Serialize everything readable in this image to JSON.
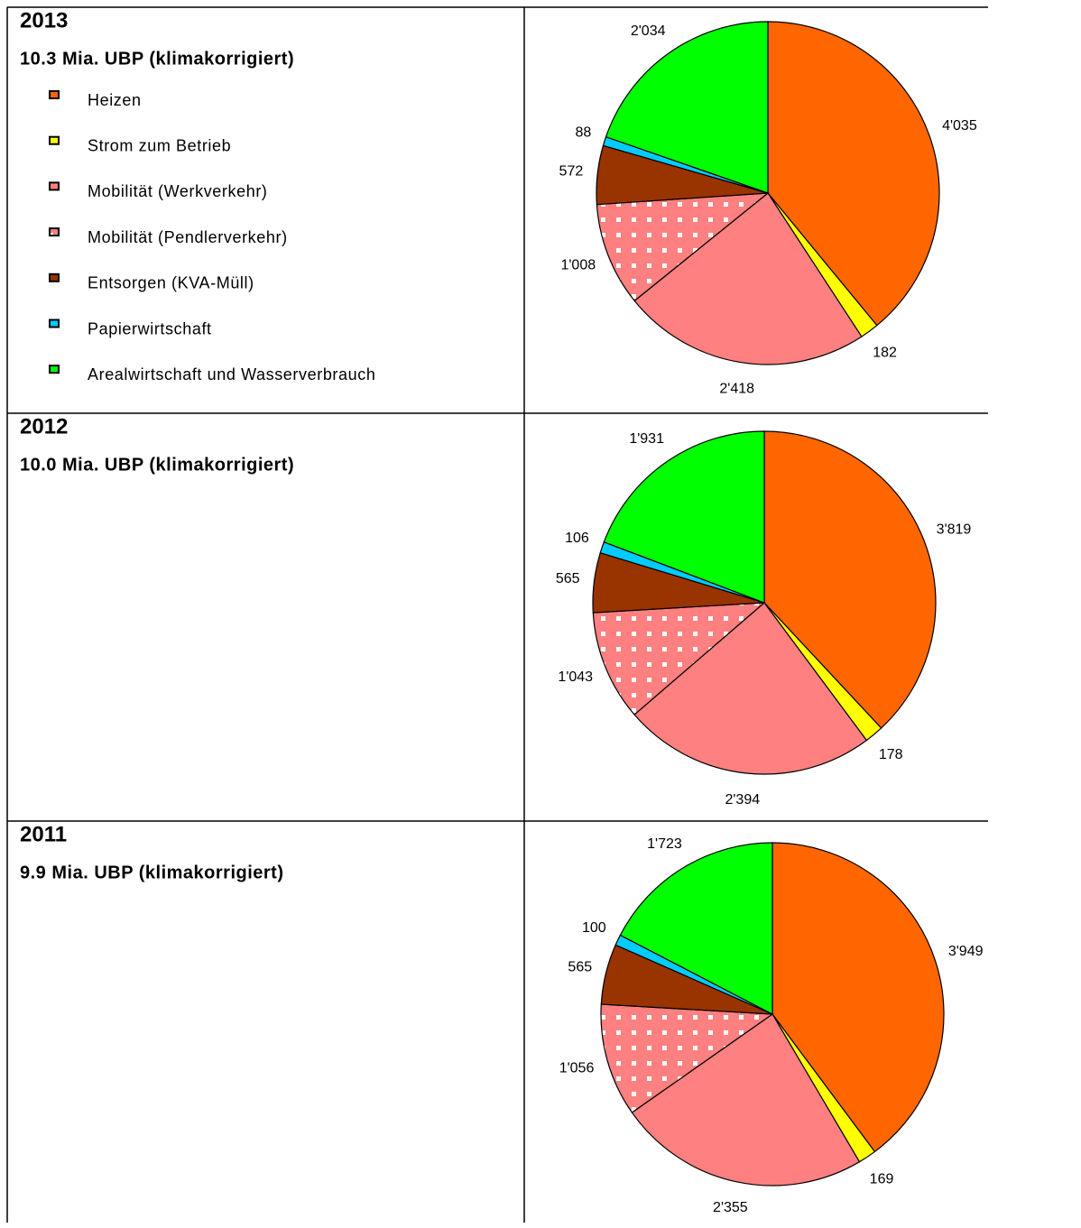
{
  "legend": {
    "categories": [
      "Heizen",
      "Strom zum Betrieb",
      "Mobilität (Werkverkehr)",
      "Mobilität (Pendlerverkehr)",
      "Entsorgen (KVA-Müll)",
      "Papierwirtschaft",
      "Arealwirtschaft und Wasserverbrauch"
    ],
    "colors": [
      "#ff6600",
      "#ffff00",
      "#ff8080",
      "#ff8080",
      "#993300",
      "#00ccff",
      "#00ff00"
    ],
    "dotted": [
      false,
      false,
      false,
      true,
      false,
      false,
      false
    ]
  },
  "chart_data": [
    {
      "type": "pie",
      "title": "2013",
      "subtitle": "10.3 Mia. UBP (klimakorrigiert)",
      "values": [
        4035,
        182,
        2418,
        1008,
        572,
        88,
        2034
      ],
      "value_labels": [
        "4'035",
        "182",
        "2'418",
        "1'008",
        "572",
        "88",
        "2'034"
      ]
    },
    {
      "type": "pie",
      "title": "2012",
      "subtitle": "10.0 Mia. UBP (klimakorrigiert)",
      "values": [
        3819,
        178,
        2394,
        1043,
        565,
        106,
        1931
      ],
      "value_labels": [
        "3'819",
        "178",
        "2'394",
        "1'043",
        "565",
        "106",
        "1'931"
      ]
    },
    {
      "type": "pie",
      "title": "2011",
      "subtitle": "9.9 Mia. UBP (klimakorrigiert)",
      "values": [
        3949,
        169,
        2355,
        1056,
        565,
        100,
        1723
      ],
      "value_labels": [
        "3'949",
        "169",
        "2'355",
        "1'056",
        "565",
        "100",
        "1'723"
      ]
    }
  ]
}
